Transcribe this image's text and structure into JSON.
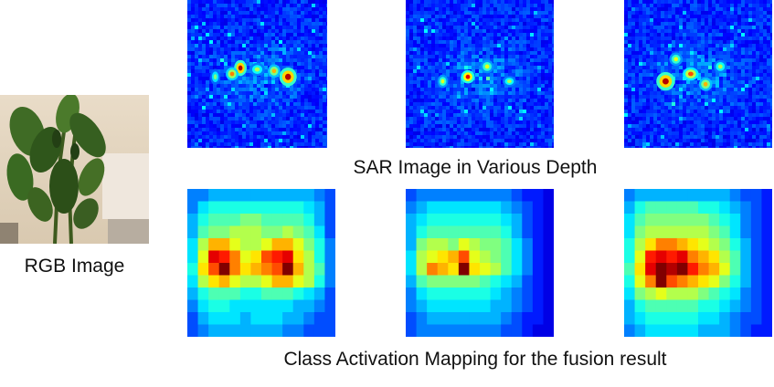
{
  "rgb": {
    "caption": "RGB Image"
  },
  "sar": {
    "caption": "SAR Image in Various Depth",
    "panels": [
      {
        "hotspots": [
          [
            0.38,
            0.46,
            0.05,
            0.06,
            0.95
          ],
          [
            0.32,
            0.5,
            0.05,
            0.05,
            0.75
          ],
          [
            0.72,
            0.52,
            0.07,
            0.07,
            0.95
          ],
          [
            0.62,
            0.48,
            0.05,
            0.05,
            0.7
          ],
          [
            0.5,
            0.47,
            0.06,
            0.05,
            0.55
          ],
          [
            0.2,
            0.52,
            0.04,
            0.06,
            0.5
          ]
        ]
      },
      {
        "hotspots": [
          [
            0.42,
            0.52,
            0.05,
            0.05,
            0.9
          ],
          [
            0.25,
            0.55,
            0.04,
            0.05,
            0.6
          ],
          [
            0.55,
            0.45,
            0.05,
            0.05,
            0.6
          ],
          [
            0.7,
            0.55,
            0.05,
            0.04,
            0.55
          ]
        ]
      },
      {
        "hotspots": [
          [
            0.28,
            0.55,
            0.07,
            0.07,
            0.95
          ],
          [
            0.45,
            0.5,
            0.06,
            0.05,
            0.8
          ],
          [
            0.55,
            0.57,
            0.05,
            0.05,
            0.7
          ],
          [
            0.35,
            0.4,
            0.05,
            0.05,
            0.6
          ],
          [
            0.65,
            0.45,
            0.05,
            0.05,
            0.55
          ]
        ]
      }
    ]
  },
  "cam": {
    "caption": "Class Activation Mapping for the fusion result",
    "panels": [
      {
        "grid": [
          [
            0.25,
            0.25,
            0.3,
            0.3,
            0.3,
            0.3,
            0.3,
            0.3,
            0.3,
            0.3,
            0.3,
            0.3,
            0.25,
            0.2
          ],
          [
            0.25,
            0.35,
            0.4,
            0.4,
            0.4,
            0.4,
            0.4,
            0.4,
            0.4,
            0.4,
            0.4,
            0.35,
            0.3,
            0.2
          ],
          [
            0.3,
            0.4,
            0.45,
            0.45,
            0.45,
            0.5,
            0.5,
            0.45,
            0.45,
            0.45,
            0.45,
            0.4,
            0.3,
            0.2
          ],
          [
            0.3,
            0.45,
            0.5,
            0.5,
            0.55,
            0.55,
            0.55,
            0.5,
            0.5,
            0.55,
            0.5,
            0.45,
            0.35,
            0.2
          ],
          [
            0.35,
            0.55,
            0.7,
            0.7,
            0.6,
            0.55,
            0.55,
            0.6,
            0.7,
            0.7,
            0.6,
            0.5,
            0.4,
            0.25
          ],
          [
            0.35,
            0.6,
            0.9,
            0.85,
            0.75,
            0.6,
            0.65,
            0.8,
            0.85,
            0.9,
            0.65,
            0.55,
            0.4,
            0.25
          ],
          [
            0.4,
            0.65,
            0.8,
            1.0,
            0.75,
            0.65,
            0.7,
            0.75,
            0.8,
            1.0,
            0.7,
            0.55,
            0.45,
            0.25
          ],
          [
            0.35,
            0.55,
            0.65,
            0.7,
            0.6,
            0.55,
            0.55,
            0.6,
            0.7,
            0.7,
            0.6,
            0.55,
            0.4,
            0.25
          ],
          [
            0.3,
            0.4,
            0.45,
            0.45,
            0.45,
            0.4,
            0.4,
            0.45,
            0.45,
            0.45,
            0.4,
            0.35,
            0.3,
            0.2
          ],
          [
            0.25,
            0.35,
            0.4,
            0.4,
            0.35,
            0.35,
            0.35,
            0.35,
            0.35,
            0.35,
            0.3,
            0.3,
            0.25,
            0.2
          ],
          [
            0.2,
            0.3,
            0.35,
            0.35,
            0.35,
            0.3,
            0.35,
            0.35,
            0.35,
            0.3,
            0.3,
            0.25,
            0.2,
            0.2
          ],
          [
            0.2,
            0.25,
            0.3,
            0.3,
            0.3,
            0.3,
            0.3,
            0.3,
            0.3,
            0.25,
            0.25,
            0.2,
            0.2,
            0.2
          ]
        ]
      },
      {
        "grid": [
          [
            0.2,
            0.25,
            0.25,
            0.25,
            0.25,
            0.25,
            0.25,
            0.25,
            0.25,
            0.25,
            0.2,
            0.15,
            0.15,
            0.1
          ],
          [
            0.25,
            0.3,
            0.35,
            0.35,
            0.35,
            0.35,
            0.35,
            0.35,
            0.35,
            0.3,
            0.25,
            0.2,
            0.15,
            0.1
          ],
          [
            0.3,
            0.35,
            0.4,
            0.4,
            0.4,
            0.4,
            0.4,
            0.4,
            0.4,
            0.35,
            0.3,
            0.2,
            0.15,
            0.1
          ],
          [
            0.3,
            0.4,
            0.45,
            0.45,
            0.45,
            0.45,
            0.45,
            0.45,
            0.45,
            0.4,
            0.3,
            0.2,
            0.15,
            0.1
          ],
          [
            0.3,
            0.5,
            0.55,
            0.55,
            0.5,
            0.6,
            0.55,
            0.5,
            0.5,
            0.45,
            0.35,
            0.25,
            0.15,
            0.1
          ],
          [
            0.35,
            0.55,
            0.6,
            0.65,
            0.7,
            0.8,
            0.6,
            0.55,
            0.5,
            0.45,
            0.35,
            0.25,
            0.15,
            0.1
          ],
          [
            0.35,
            0.55,
            0.75,
            0.7,
            0.65,
            1.0,
            0.65,
            0.6,
            0.55,
            0.45,
            0.35,
            0.25,
            0.15,
            0.1
          ],
          [
            0.3,
            0.45,
            0.5,
            0.5,
            0.5,
            0.5,
            0.5,
            0.45,
            0.4,
            0.35,
            0.3,
            0.2,
            0.15,
            0.1
          ],
          [
            0.25,
            0.35,
            0.4,
            0.4,
            0.4,
            0.4,
            0.4,
            0.4,
            0.35,
            0.3,
            0.25,
            0.2,
            0.15,
            0.1
          ],
          [
            0.25,
            0.3,
            0.35,
            0.35,
            0.35,
            0.35,
            0.35,
            0.35,
            0.3,
            0.3,
            0.25,
            0.2,
            0.15,
            0.1
          ],
          [
            0.2,
            0.25,
            0.3,
            0.3,
            0.3,
            0.3,
            0.3,
            0.3,
            0.3,
            0.25,
            0.2,
            0.15,
            0.15,
            0.1
          ],
          [
            0.2,
            0.25,
            0.25,
            0.25,
            0.25,
            0.25,
            0.25,
            0.25,
            0.25,
            0.2,
            0.2,
            0.15,
            0.1,
            0.1
          ]
        ]
      },
      {
        "grid": [
          [
            0.25,
            0.3,
            0.3,
            0.3,
            0.3,
            0.3,
            0.3,
            0.3,
            0.3,
            0.3,
            0.25,
            0.2,
            0.2,
            0.15
          ],
          [
            0.3,
            0.4,
            0.45,
            0.45,
            0.45,
            0.45,
            0.45,
            0.4,
            0.4,
            0.35,
            0.3,
            0.25,
            0.2,
            0.15
          ],
          [
            0.35,
            0.45,
            0.5,
            0.5,
            0.5,
            0.5,
            0.5,
            0.5,
            0.45,
            0.4,
            0.35,
            0.25,
            0.2,
            0.15
          ],
          [
            0.35,
            0.5,
            0.55,
            0.55,
            0.55,
            0.55,
            0.55,
            0.55,
            0.5,
            0.45,
            0.35,
            0.25,
            0.2,
            0.15
          ],
          [
            0.4,
            0.55,
            0.65,
            0.75,
            0.75,
            0.7,
            0.65,
            0.6,
            0.55,
            0.5,
            0.4,
            0.3,
            0.2,
            0.15
          ],
          [
            0.4,
            0.6,
            0.85,
            0.9,
            0.85,
            0.9,
            0.75,
            0.7,
            0.65,
            0.55,
            0.45,
            0.3,
            0.2,
            0.15
          ],
          [
            0.45,
            0.65,
            0.9,
            1.0,
            0.95,
            1.0,
            0.85,
            0.75,
            0.7,
            0.6,
            0.45,
            0.3,
            0.2,
            0.15
          ],
          [
            0.4,
            0.6,
            0.75,
            1.0,
            0.8,
            0.75,
            0.7,
            0.65,
            0.6,
            0.5,
            0.4,
            0.3,
            0.2,
            0.15
          ],
          [
            0.35,
            0.5,
            0.55,
            0.6,
            0.55,
            0.55,
            0.55,
            0.5,
            0.45,
            0.4,
            0.35,
            0.25,
            0.2,
            0.15
          ],
          [
            0.3,
            0.4,
            0.45,
            0.45,
            0.45,
            0.45,
            0.45,
            0.4,
            0.4,
            0.35,
            0.3,
            0.25,
            0.2,
            0.15
          ],
          [
            0.3,
            0.35,
            0.4,
            0.4,
            0.4,
            0.4,
            0.4,
            0.35,
            0.35,
            0.3,
            0.25,
            0.2,
            0.2,
            0.15
          ],
          [
            0.25,
            0.3,
            0.35,
            0.35,
            0.35,
            0.35,
            0.35,
            0.3,
            0.3,
            0.3,
            0.25,
            0.2,
            0.15,
            0.15
          ]
        ]
      }
    ]
  }
}
